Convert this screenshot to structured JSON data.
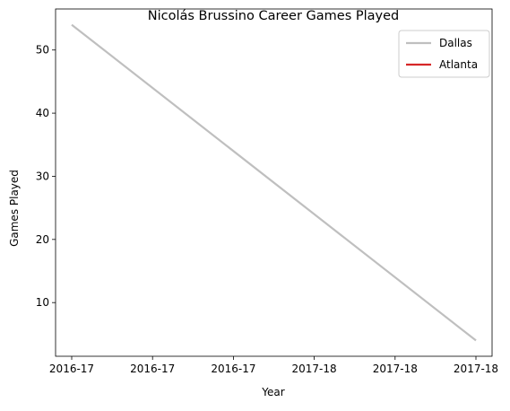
{
  "chart_data": {
    "type": "line",
    "title": "Nicolás Brussino Career Games Played",
    "xlabel": "Year",
    "ylabel": "Games Played",
    "x_tick_labels": [
      "2016-17",
      "2016-17",
      "2016-17",
      "2017-18",
      "2017-18",
      "2017-18"
    ],
    "x": [
      "2016-17",
      "2017-18"
    ],
    "y_ticks": [
      10,
      20,
      30,
      40,
      50
    ],
    "ylim": [
      1.5,
      56.5
    ],
    "grid": false,
    "legend_position": "top-right",
    "series": [
      {
        "name": "Dallas",
        "color": "#bfbfbf",
        "x": [
          "2016-17",
          "2017-18"
        ],
        "values": [
          54,
          4
        ]
      },
      {
        "name": "Atlanta",
        "color": "#d62728",
        "x": [],
        "values": []
      }
    ]
  }
}
